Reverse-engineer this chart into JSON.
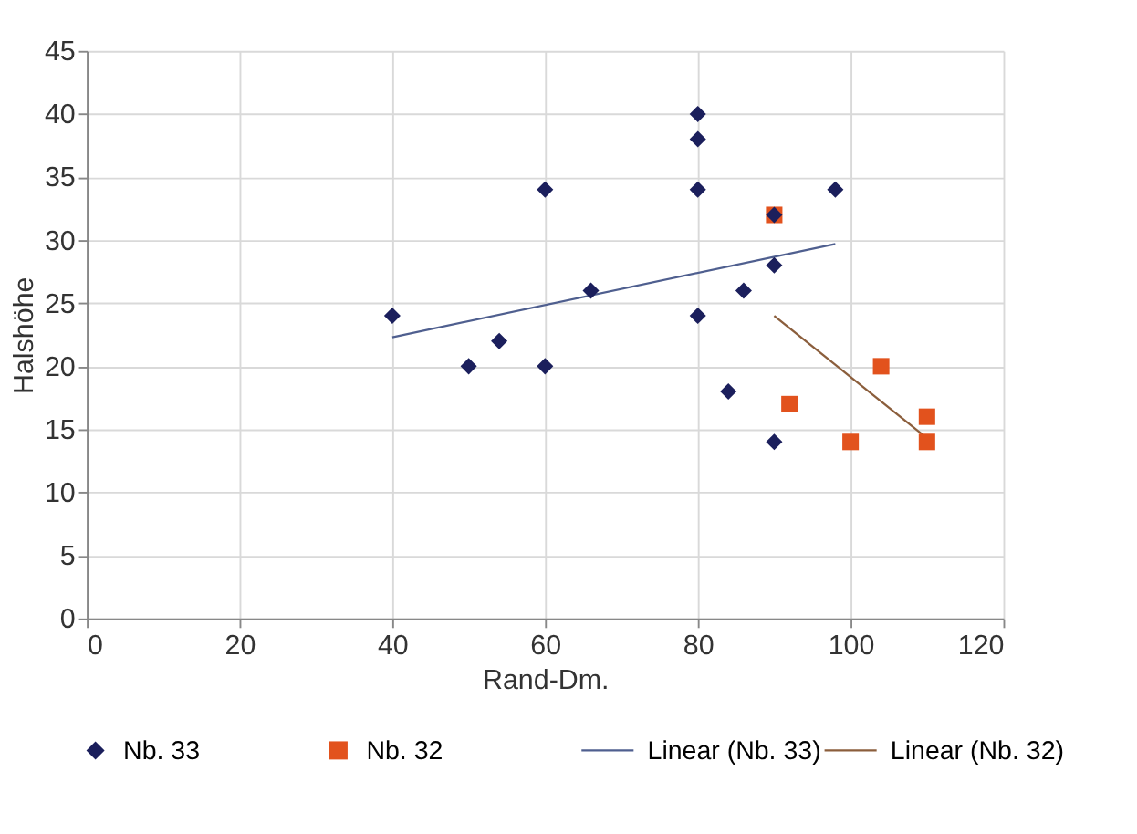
{
  "chart_data": {
    "type": "scatter",
    "xlabel": "Rand-Dm.",
    "ylabel": "Halshöhe",
    "xlim": [
      0,
      120
    ],
    "ylim": [
      0,
      45
    ],
    "xticks": [
      0,
      20,
      40,
      60,
      80,
      100,
      120
    ],
    "yticks": [
      0,
      5,
      10,
      15,
      20,
      25,
      30,
      35,
      40,
      45
    ],
    "grid": true,
    "legend": "bottom",
    "series": [
      {
        "name": "Nb. 33",
        "type": "scatter",
        "marker": "diamond",
        "color": "#1b1f5c",
        "x": [
          40,
          50,
          54,
          60,
          60,
          66,
          80,
          80,
          80,
          80,
          84,
          86,
          90,
          90,
          90,
          98
        ],
        "values": [
          24,
          20,
          22,
          34,
          20,
          26,
          40,
          38,
          34,
          24,
          18,
          26,
          32,
          28,
          14,
          34
        ]
      },
      {
        "name": "Nb. 32",
        "type": "scatter",
        "marker": "square",
        "color": "#e2521d",
        "x": [
          90,
          92,
          100,
          104,
          110,
          110
        ],
        "values": [
          32,
          17,
          14,
          20,
          16,
          14
        ]
      },
      {
        "name": "Linear (Nb. 33)",
        "type": "line",
        "color": "#4f5f8f",
        "x": [
          40,
          98
        ],
        "values": [
          22.3,
          29.7
        ]
      },
      {
        "name": "Linear (Nb. 32)",
        "type": "line",
        "color": "#8b5e3c",
        "x": [
          90,
          110
        ],
        "values": [
          24,
          14.3
        ]
      }
    ]
  }
}
